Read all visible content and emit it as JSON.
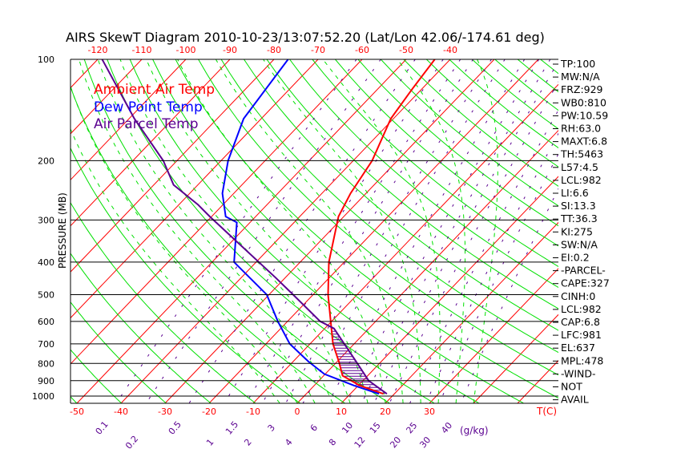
{
  "chart_data": {
    "type": "line",
    "title": "AIRS SkewT Diagram 2010-10-23/13:07:52.20 (Lat/Lon 42.06/-174.61 deg)",
    "ylabel": "PRESSURE (MB)",
    "xlabel": "T(C)",
    "mixing_label_unit": "(g/kg)",
    "pressure_ticks": [
      100,
      200,
      300,
      400,
      500,
      600,
      700,
      800,
      900,
      1000
    ],
    "pressure_tick_labels": [
      "100",
      "200",
      "300",
      "400",
      "500",
      "600",
      "700",
      "800",
      "900",
      "1000"
    ],
    "top_temp_ticks": [
      -120,
      -110,
      -100,
      -90,
      -80,
      -70,
      -60,
      -50,
      -40
    ],
    "top_temp_labels": [
      "-120",
      "-110",
      "-100",
      "-90",
      "-80",
      "-70",
      "-60",
      "-50",
      "-40"
    ],
    "bottom_temp_ticks": [
      -50,
      -40,
      -30,
      -20,
      -10,
      0,
      10,
      20,
      30
    ],
    "bottom_temp_labels": [
      "-50",
      "-40",
      "-30",
      "-20",
      "-10",
      "0",
      "10",
      "20",
      "30"
    ],
    "mixing_ratios": [
      0.1,
      0.2,
      0.5,
      1,
      1.5,
      2,
      3,
      4,
      6,
      8,
      10,
      12,
      15,
      20,
      25,
      30,
      40
    ],
    "mixing_ratio_labels": [
      "0.1",
      "0.2",
      "0.5",
      "1",
      "1.5",
      "2",
      "3",
      "4",
      "6",
      "8",
      "10",
      "12",
      "15",
      "20",
      "25",
      "30",
      "40"
    ],
    "legend": [
      {
        "label": "Ambient Air Temp",
        "color": "#ff0000"
      },
      {
        "label": "Dew Point Temp",
        "color": "#0000ff"
      },
      {
        "label": "Air Parcel Temp",
        "color": "#5a0090"
      }
    ],
    "series": [
      {
        "name": "Ambient Air Temp",
        "color": "#ff0000",
        "p": [
          100,
          122,
          150,
          200,
          250,
          293,
          400,
          500,
          600,
          700,
          790,
          870,
          930,
          985
        ],
        "t": [
          -43.5,
          -42.2,
          -40.6,
          -35.7,
          -33.5,
          -31.2,
          -23.5,
          -16.6,
          -10.2,
          -4.8,
          0.4,
          4.3,
          10.3,
          17.5
        ]
      },
      {
        "name": "Dew Point Temp",
        "color": "#0000ff",
        "p": [
          100,
          150,
          200,
          250,
          293,
          305,
          400,
          500,
          600,
          700,
          790,
          860,
          930,
          985
        ],
        "t": [
          -76.8,
          -74,
          -68.4,
          -62.6,
          -56.8,
          -53,
          -45,
          -30.5,
          -22.2,
          -14.6,
          -6.5,
          -0.2,
          9,
          16.5
        ]
      },
      {
        "name": "Air Parcel Temp",
        "color": "#5a0090",
        "p": [
          100,
          150,
          200,
          236,
          270,
          293,
          445,
          500,
          600,
          630,
          800,
          900,
          985
        ],
        "t": [
          -119,
          -98.8,
          -83.1,
          -75.5,
          -65.7,
          -60.4,
          -32.2,
          -24.5,
          -12.6,
          -7.9,
          5,
          11.3,
          18.3
        ]
      }
    ],
    "cape_region_pressure": [
      630,
      985
    ],
    "colors": {
      "isotherm": "#ff0000",
      "dry_adiabat": "#00e000",
      "moist_adiabat": "#00e000",
      "mixing_ratio": "#5a0090",
      "axis": "#000000"
    }
  },
  "indices": [
    "TP:100",
    "MW:N/A",
    "FRZ:929",
    "WB0:810",
    "PW:10.59",
    "RH:63.0",
    "MAXT:6.8",
    "TH:5463",
    "L57:4.5",
    "LCL:982",
    "LI:6.6",
    "SI:13.3",
    "TT:36.3",
    "KI:275",
    "SW:N/A",
    "EI:0.2",
    "-PARCEL-",
    "CAPE:327",
    "CINH:0",
    "LCL:982",
    "CAP:6.8",
    "LFC:981",
    "EL:637",
    "MPL:478",
    "-WIND-",
    "NOT",
    "AVAIL"
  ]
}
